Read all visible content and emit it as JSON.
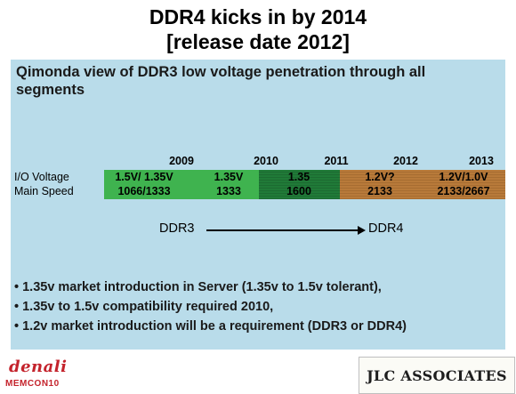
{
  "title_line1": "DDR4 kicks in by 2014",
  "title_line2": "[release date 2012]",
  "subtitle": "Qimonda view of  DDR3 low voltage penetration through all segments",
  "table": {
    "years": [
      "2009",
      "2010",
      "2011",
      "2012",
      "2013"
    ],
    "row_labels": [
      "I/O Voltage",
      "Main Speed"
    ],
    "io_voltage": [
      "1.5V/ 1.35V",
      "1.35V",
      "1.35",
      "1.2V?",
      "1.2V/1.0V"
    ],
    "main_speed": [
      "1066/1333",
      "1333",
      "1600",
      "2133",
      "2133/2667"
    ]
  },
  "arrow": {
    "from": "DDR3",
    "to": "DDR4"
  },
  "bullets": [
    "• 1.35v market introduction in Server (1.35v to 1.5v tolerant),",
    "• 1.35v to 1.5v compatibility required 2010,",
    "• 1.2v market introduction will be a requirement (DDR3 or DDR4)"
  ],
  "logos": {
    "left_main": "denali",
    "left_sub": "MEMCON10",
    "right": "JLC ASSOCIATES"
  },
  "colors": {
    "panel": "#b9dcea",
    "green_light": "#3fb34f",
    "green_dark": "#207a38",
    "brown": "#b87a3a",
    "logo_red": "#c4232c"
  }
}
